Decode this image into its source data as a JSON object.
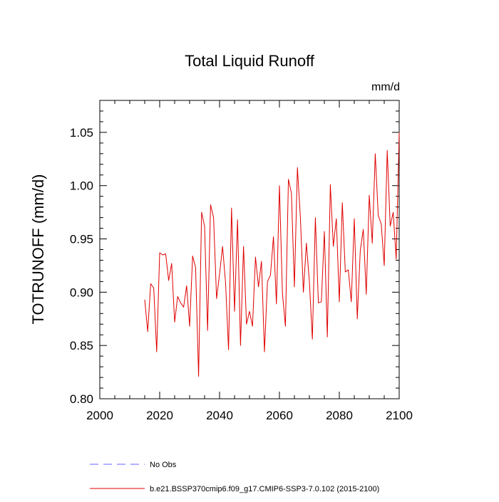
{
  "chart_data": {
    "type": "line",
    "title": "Total Liquid Runoff",
    "units_label": "mm/d",
    "ylabel": "TOTRUNOFF  (mm/d)",
    "xlabel": "",
    "xlim": [
      2000,
      2100
    ],
    "ylim": [
      0.8,
      1.08
    ],
    "x_ticks": [
      2000,
      2020,
      2040,
      2060,
      2080,
      2100
    ],
    "x_tick_labels": [
      "2000",
      "2020",
      "2040",
      "2060",
      "2080",
      "2100"
    ],
    "y_ticks": [
      0.8,
      0.85,
      0.9,
      0.95,
      1.0,
      1.05
    ],
    "y_tick_labels": [
      "0.80",
      "0.85",
      "0.90",
      "0.95",
      "1.00",
      "1.05"
    ],
    "grid": false,
    "legend_position": "bottom",
    "series": [
      {
        "name": "No Obs",
        "color": "#6666ff",
        "dashed": true,
        "x": [],
        "y": []
      },
      {
        "name": "b.e21.BSSP370cmip6.f09_g17.CMIP6-SSP3-7.0.102 (2015-2100)",
        "color": "#e00000",
        "dashed": false,
        "x": [
          2015,
          2016,
          2017,
          2018,
          2019,
          2020,
          2021,
          2022,
          2023,
          2024,
          2025,
          2026,
          2027,
          2028,
          2029,
          2030,
          2031,
          2032,
          2033,
          2034,
          2035,
          2036,
          2037,
          2038,
          2039,
          2040,
          2041,
          2042,
          2043,
          2044,
          2045,
          2046,
          2047,
          2048,
          2049,
          2050,
          2051,
          2052,
          2053,
          2054,
          2055,
          2056,
          2057,
          2058,
          2059,
          2060,
          2061,
          2062,
          2063,
          2064,
          2065,
          2066,
          2067,
          2068,
          2069,
          2070,
          2071,
          2072,
          2073,
          2074,
          2075,
          2076,
          2077,
          2078,
          2079,
          2080,
          2081,
          2082,
          2083,
          2084,
          2085,
          2086,
          2087,
          2088,
          2089,
          2090,
          2091,
          2092,
          2093,
          2094,
          2095,
          2096,
          2097,
          2098,
          2099,
          2100
        ],
        "y": [
          0.893,
          0.863,
          0.908,
          0.904,
          0.844,
          0.937,
          0.935,
          0.936,
          0.911,
          0.927,
          0.872,
          0.896,
          0.89,
          0.886,
          0.906,
          0.868,
          0.934,
          0.923,
          0.821,
          0.975,
          0.962,
          0.864,
          0.982,
          0.97,
          0.894,
          0.917,
          0.943,
          0.909,
          0.846,
          0.979,
          0.882,
          0.968,
          0.85,
          0.943,
          0.87,
          0.882,
          0.868,
          0.933,
          0.905,
          0.929,
          0.844,
          0.91,
          0.916,
          0.952,
          0.889,
          1.0,
          0.899,
          0.868,
          1.006,
          0.993,
          0.905,
          1.017,
          0.97,
          0.9,
          0.946,
          0.91,
          0.856,
          0.97,
          0.89,
          0.891,
          0.957,
          0.858,
          1.001,
          0.943,
          0.969,
          0.891,
          0.984,
          0.919,
          0.921,
          0.891,
          0.969,
          0.875,
          0.939,
          0.959,
          0.898,
          0.991,
          0.946,
          1.03,
          0.972,
          0.964,
          0.925,
          1.033,
          0.962,
          0.975,
          0.931,
          1.05
        ]
      }
    ]
  }
}
